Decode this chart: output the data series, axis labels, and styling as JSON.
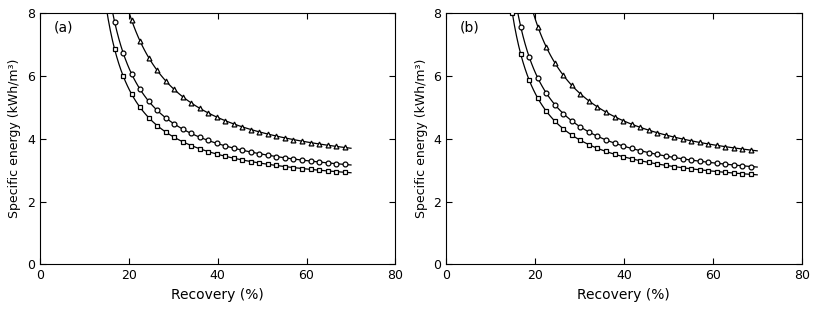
{
  "title_a": "(a)",
  "title_b": "(b)",
  "xlabel": "Recovery (%)",
  "ylabel": "Specific energy (kWh/m³)",
  "xlim": [
    0,
    80
  ],
  "ylim": [
    0,
    8
  ],
  "xticks": [
    0,
    20,
    40,
    60,
    80
  ],
  "yticks": [
    0,
    2,
    4,
    6,
    8
  ],
  "line_color": "#000000",
  "marker_square": "s",
  "marker_circle": "o",
  "marker_triangle": "^",
  "markersize": 3.5,
  "linewidth": 0.9,
  "recovery_start": 13,
  "recovery_end": 70,
  "n_points": 120,
  "marker_every": 4,
  "curve_sq_a": [
    2.3,
    38.0,
    8.5
  ],
  "curve_ci_a": [
    2.45,
    44.0,
    8.5
  ],
  "curve_tr_a": [
    2.65,
    65.0,
    8.0
  ],
  "curve_sq_b": [
    2.25,
    37.0,
    8.5
  ],
  "curve_ci_b": [
    2.4,
    43.0,
    8.5
  ],
  "curve_tr_b": [
    2.6,
    63.0,
    8.0
  ]
}
